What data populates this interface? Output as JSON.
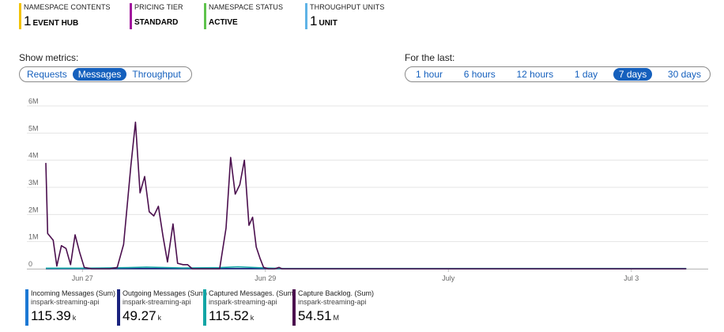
{
  "tiles": [
    {
      "label": "NAMESPACE CONTENTS",
      "number": "1",
      "unit": "EVENT HUB",
      "color": "#f2c200"
    },
    {
      "label": "PRICING TIER",
      "number": "",
      "unit": "STANDARD",
      "color": "#a0149c"
    },
    {
      "label": "NAMESPACE STATUS",
      "number": "",
      "unit": "ACTIVE",
      "color": "#5ec34c"
    },
    {
      "label": "THROUGHPUT UNITS",
      "number": "1",
      "unit": "UNIT",
      "color": "#5fb3e6"
    }
  ],
  "metrics": {
    "label": "Show metrics:",
    "options": [
      "Requests",
      "Messages",
      "Throughput"
    ],
    "selected": "Messages"
  },
  "range": {
    "label": "For the last:",
    "options": [
      "1 hour",
      "6 hours",
      "12 hours",
      "1 day",
      "7 days",
      "30 days"
    ],
    "selected": "7 days"
  },
  "chart_data": {
    "type": "line",
    "y_ticks": [
      "6M",
      "5M",
      "4M",
      "3M",
      "2M",
      "1M",
      "0"
    ],
    "ylim": [
      0,
      6000000
    ],
    "x_ticks": [
      {
        "label": "Jun 27",
        "day": 0
      },
      {
        "label": "Jun 29",
        "day": 2
      },
      {
        "label": "July",
        "day": 4
      },
      {
        "label": "Jul 3",
        "day": 6
      }
    ],
    "x_unit": "day",
    "xlim": [
      -0.4,
      6.65
    ],
    "grid": true,
    "series": [
      {
        "color": "#4b0f4e",
        "points": [
          [
            -0.4,
            3900000
          ],
          [
            -0.38,
            1300000
          ],
          [
            -0.32,
            1050000
          ],
          [
            -0.28,
            100000
          ],
          [
            -0.23,
            850000
          ],
          [
            -0.18,
            750000
          ],
          [
            -0.13,
            150000
          ],
          [
            -0.08,
            1250000
          ],
          [
            -0.03,
            600000
          ],
          [
            0.02,
            50000
          ],
          [
            0.1,
            0
          ],
          [
            0.2,
            0
          ],
          [
            0.3,
            0
          ],
          [
            0.38,
            50000
          ],
          [
            0.45,
            900000
          ],
          [
            0.53,
            3800000
          ],
          [
            0.58,
            5400000
          ],
          [
            0.63,
            2800000
          ],
          [
            0.68,
            3400000
          ],
          [
            0.73,
            2100000
          ],
          [
            0.78,
            1950000
          ],
          [
            0.83,
            2300000
          ],
          [
            0.88,
            1200000
          ],
          [
            0.93,
            250000
          ],
          [
            0.99,
            1650000
          ],
          [
            1.04,
            200000
          ],
          [
            1.1,
            150000
          ],
          [
            1.15,
            150000
          ],
          [
            1.2,
            0
          ],
          [
            1.4,
            0
          ],
          [
            1.5,
            0
          ],
          [
            1.57,
            1500000
          ],
          [
            1.62,
            4100000
          ],
          [
            1.67,
            2750000
          ],
          [
            1.72,
            3100000
          ],
          [
            1.77,
            4000000
          ],
          [
            1.82,
            1600000
          ],
          [
            1.86,
            1900000
          ],
          [
            1.9,
            800000
          ],
          [
            1.94,
            400000
          ],
          [
            1.98,
            50000
          ],
          [
            2.03,
            0
          ],
          [
            2.1,
            0
          ],
          [
            2.15,
            50000
          ],
          [
            2.18,
            0
          ],
          [
            6.6,
            0
          ]
        ]
      },
      {
        "color": "#12a5a5",
        "points": [
          [
            -0.4,
            20000
          ],
          [
            0.0,
            20000
          ],
          [
            0.5,
            40000
          ],
          [
            0.7,
            60000
          ],
          [
            1.1,
            30000
          ],
          [
            1.5,
            40000
          ],
          [
            1.7,
            70000
          ],
          [
            2.0,
            30000
          ],
          [
            2.2,
            10000
          ],
          [
            6.6,
            10000
          ]
        ]
      },
      {
        "color": "#1a237e",
        "points": [
          [
            -0.4,
            5000
          ],
          [
            6.6,
            5000
          ]
        ]
      }
    ]
  },
  "legend": [
    {
      "name": "Incoming Messages (Sum)",
      "resource": "inspark-streaming-api",
      "value": "115.39",
      "unit": "k",
      "color": "#1b78d4"
    },
    {
      "name": "Outgoing Messages (Sum)",
      "resource": "inspark-streaming-api",
      "value": "49.27",
      "unit": "k",
      "color": "#1a237e"
    },
    {
      "name": "Captured Messages. (Sum)",
      "resource": "inspark-streaming-api",
      "value": "115.52",
      "unit": "k",
      "color": "#12a5a5"
    },
    {
      "name": "Capture Backlog. (Sum)",
      "resource": "inspark-streaming-api",
      "value": "54.51",
      "unit": "M",
      "color": "#4b0f4e"
    }
  ]
}
